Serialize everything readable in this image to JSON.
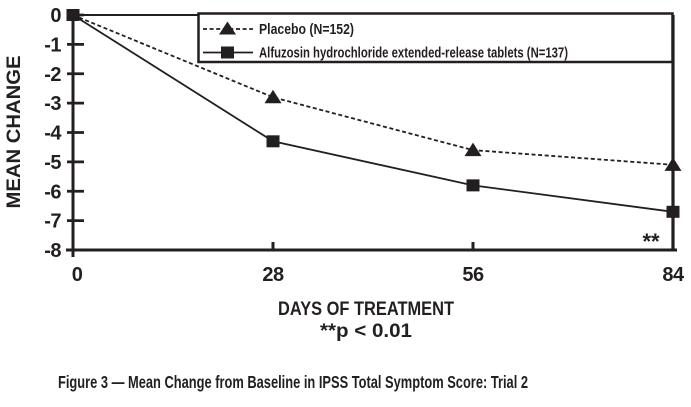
{
  "figure": {
    "caption": "Figure 3 — Mean Change from Baseline in IPSS Total Symptom Score: Trial 2"
  },
  "colors": {
    "ink": "#231f20",
    "background": "#ffffff"
  },
  "chart_data": {
    "type": "line",
    "title": "",
    "xlabel": "DAYS OF TREATMENT",
    "ylabel": "MEAN CHANGE",
    "xlim": [
      0,
      84
    ],
    "ylim": [
      -8,
      0
    ],
    "grid": false,
    "legend_position": "top-inside",
    "x": [
      0,
      28,
      56,
      84
    ],
    "x_tick_labels": [
      "0",
      "28",
      "56",
      "84"
    ],
    "y_tick_labels": [
      "0",
      "-1",
      "-2",
      "-3",
      "-4",
      "-5",
      "-6",
      "-7",
      "-8"
    ],
    "series": [
      {
        "name": "Placebo (N=152)",
        "line_style": "dashed",
        "marker": "triangle",
        "values": [
          0,
          -2.8,
          -4.6,
          -5.1
        ]
      },
      {
        "name": "Alfuzosin hydrochloride extended-release tablets (N=137)",
        "line_style": "solid",
        "marker": "square",
        "values": [
          0,
          -4.3,
          -5.8,
          -6.7
        ]
      }
    ],
    "footnote": "**p < 0.01",
    "annotation": {
      "text": "**",
      "x": 84,
      "y": -7.6
    }
  }
}
